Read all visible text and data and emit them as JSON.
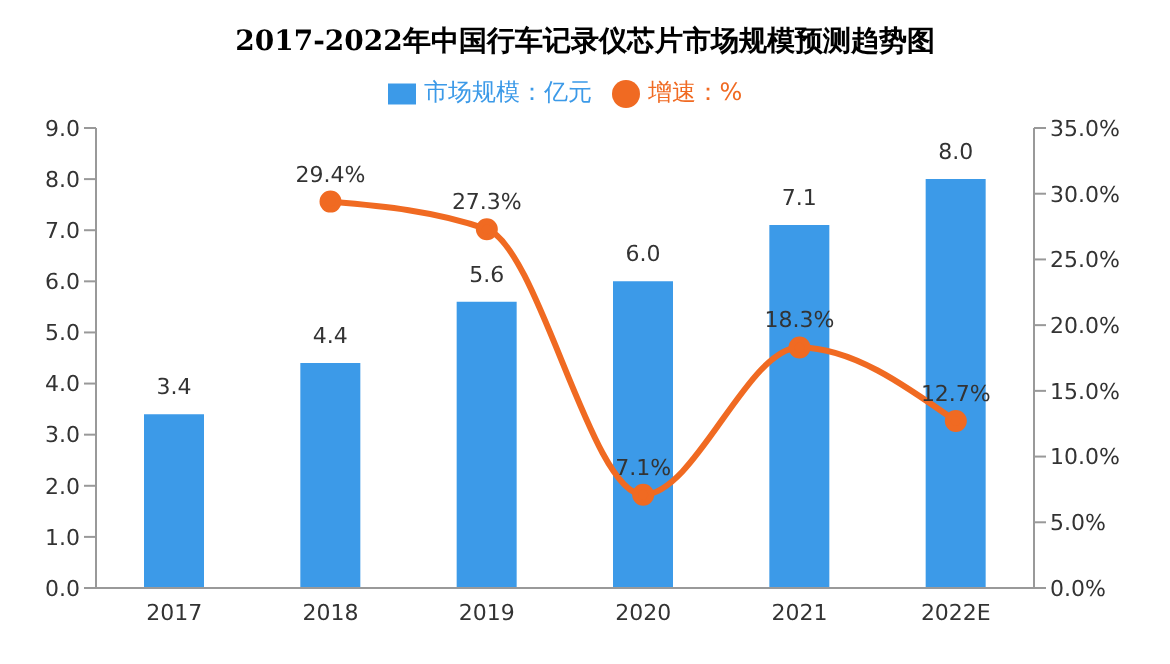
{
  "chart_data": {
    "type": "bar",
    "title": "2017-2022年中国行车记录仪芯片市场规模预测趋势图",
    "categories": [
      "2017",
      "2018",
      "2019",
      "2020",
      "2021",
      "2022E"
    ],
    "series": [
      {
        "name": "市场规模：亿元",
        "color": "#3c9ae8",
        "values": [
          3.4,
          4.4,
          5.6,
          6.0,
          7.1,
          8.0
        ],
        "value_labels": [
          "3.4",
          "4.4",
          "5.6",
          "6.0",
          "7.1",
          "8.0"
        ]
      },
      {
        "name": "增速：%",
        "type": "line",
        "axis": "y2",
        "color": "#f06a22",
        "marker": "circle",
        "values": [
          null,
          29.4,
          27.3,
          7.1,
          18.3,
          12.7
        ],
        "value_labels": [
          null,
          "29.4%",
          "27.3%",
          "7.1%",
          "18.3%",
          "12.7%"
        ]
      }
    ],
    "ylim": [
      0,
      9
    ],
    "yticks": [
      {
        "value": 0,
        "label": "0.0"
      },
      {
        "value": 1,
        "label": "1.0"
      },
      {
        "value": 2,
        "label": "2.0"
      },
      {
        "value": 3,
        "label": "3.0"
      },
      {
        "value": 4,
        "label": "4.0"
      },
      {
        "value": 5,
        "label": "5.0"
      },
      {
        "value": 6,
        "label": "6.0"
      },
      {
        "value": 7,
        "label": "7.0"
      },
      {
        "value": 8,
        "label": "8.0"
      },
      {
        "value": 9,
        "label": "9.0"
      }
    ],
    "y2lim": [
      0,
      35
    ],
    "y2ticks": [
      {
        "value": 0,
        "label": "0.0%"
      },
      {
        "value": 5,
        "label": "5.0%"
      },
      {
        "value": 10,
        "label": "10.0%"
      },
      {
        "value": 15,
        "label": "15.0%"
      },
      {
        "value": 20,
        "label": "20.0%"
      },
      {
        "value": 25,
        "label": "25.0%"
      },
      {
        "value": 30,
        "label": "30.0%"
      },
      {
        "value": 35,
        "label": "35.0%"
      }
    ],
    "legend": "top",
    "grid": false
  }
}
